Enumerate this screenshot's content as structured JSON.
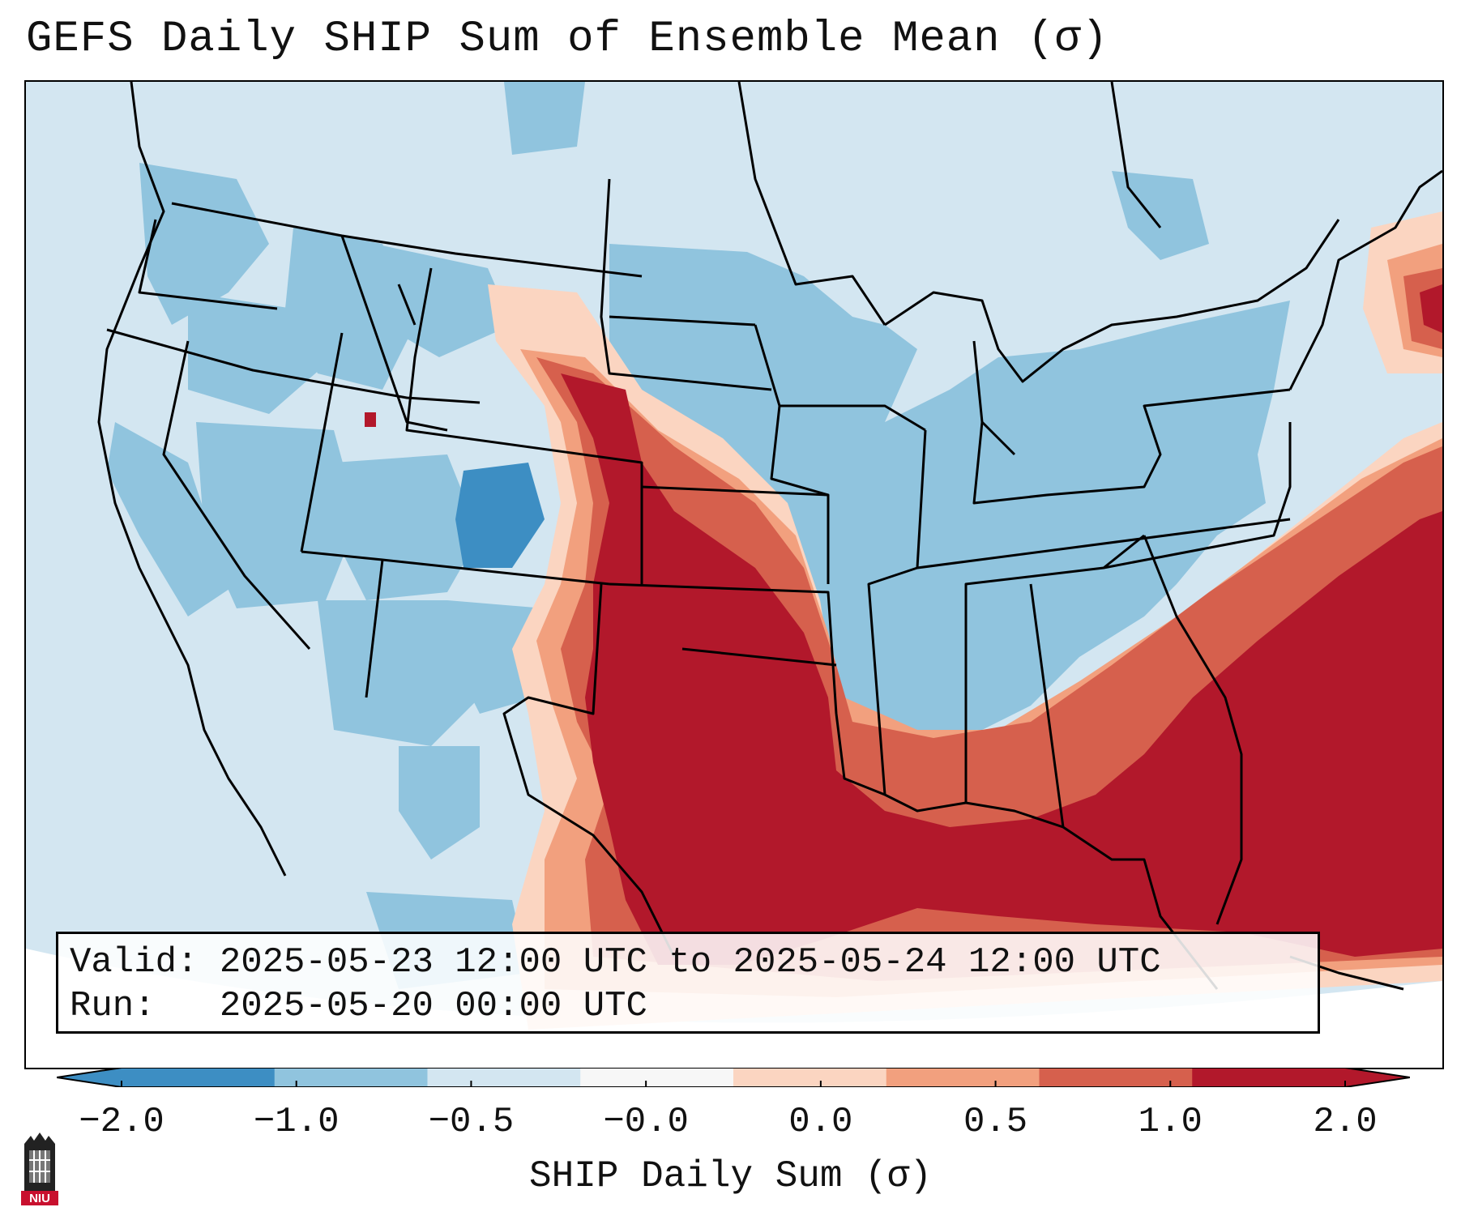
{
  "title": "GEFS Daily SHIP Sum of Ensemble Mean (σ)",
  "info": {
    "valid_line": "Valid: 2025-05-23 12:00 UTC to 2025-05-24 12:00 UTC",
    "run_line": "Run:   2025-05-20 00:00 UTC"
  },
  "colorbar": {
    "label": "SHIP Daily Sum (σ)",
    "ticks": [
      "−2.0",
      "−1.0",
      "−0.5",
      "−0.0",
      "0.0",
      "0.5",
      "1.0",
      "2.0"
    ],
    "colors": [
      "#3d8ec3",
      "#90c4de",
      "#d3e6f1",
      "#f7f7f7",
      "#fbd5c1",
      "#f2a07e",
      "#d6604d",
      "#b2182b"
    ],
    "extend_low_color": "#3d8ec3",
    "extend_high_color": "#b2182b"
  },
  "logo": {
    "text": "NIU"
  },
  "map": {
    "projection": "Lambert conformal, CONUS",
    "field_colors": {
      "ocean_background": "#d3e6f1",
      "blue_mid": "#90c4de",
      "blue_dark": "#3d8ec3",
      "red_light": "#fbd5c1",
      "red_mid": "#f2a07e",
      "red_strong": "#d6604d",
      "red_dark": "#b2182b"
    }
  }
}
